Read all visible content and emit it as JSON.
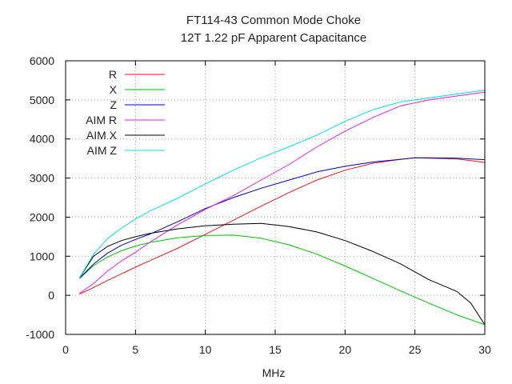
{
  "chart_data": {
    "type": "line",
    "title": "FT114-43 Common Mode Choke",
    "subtitle": "12T 1.22 pF Apparent Capacitance",
    "xlabel": "MHz",
    "ylabel": "",
    "xlim": [
      0,
      30
    ],
    "ylim": [
      -1000,
      6000
    ],
    "xticks": [
      "0",
      "5",
      "10",
      "15",
      "20",
      "25",
      "30"
    ],
    "yticks": [
      "-1000",
      "0",
      "1000",
      "2000",
      "3000",
      "4000",
      "5000",
      "6000"
    ],
    "grid": true,
    "legend_position": "top-left",
    "series": [
      {
        "name": "R",
        "color": "#e41a1c",
        "x": [
          1,
          2,
          3,
          4,
          5,
          6,
          8,
          10,
          12,
          14,
          16,
          18,
          20,
          22,
          24,
          25,
          26,
          28,
          30
        ],
        "y": [
          30,
          200,
          380,
          550,
          720,
          880,
          1200,
          1560,
          1920,
          2280,
          2630,
          2950,
          3200,
          3380,
          3480,
          3520,
          3510,
          3490,
          3400
        ]
      },
      {
        "name": "X",
        "color": "#00c000",
        "x": [
          1,
          2,
          3,
          4,
          5,
          6,
          8,
          10,
          12,
          14,
          16,
          18,
          20,
          22,
          24,
          26,
          28,
          30
        ],
        "y": [
          430,
          760,
          980,
          1140,
          1260,
          1350,
          1470,
          1530,
          1540,
          1460,
          1290,
          1050,
          750,
          430,
          110,
          -200,
          -500,
          -750
        ]
      },
      {
        "name": "Z",
        "color": "#0000c0",
        "x": [
          1,
          2,
          3,
          4,
          5,
          6,
          8,
          10,
          12,
          14,
          16,
          18,
          20,
          22,
          24,
          25,
          26,
          28,
          30
        ],
        "y": [
          440,
          800,
          1080,
          1280,
          1430,
          1560,
          1880,
          2220,
          2500,
          2740,
          2950,
          3160,
          3300,
          3410,
          3480,
          3520,
          3520,
          3510,
          3470
        ]
      },
      {
        "name": "AIM R",
        "color": "#e020e0",
        "x": [
          1,
          2,
          3,
          4,
          5,
          6,
          8,
          10,
          12,
          14,
          16,
          18,
          20,
          22,
          24,
          26,
          28,
          30
        ],
        "y": [
          50,
          300,
          620,
          880,
          1100,
          1350,
          1800,
          2200,
          2550,
          2950,
          3350,
          3800,
          4200,
          4550,
          4850,
          5000,
          5100,
          5200
        ]
      },
      {
        "name": "AIM X",
        "color": "#000000",
        "x": [
          1,
          2,
          3,
          4,
          5,
          6,
          8,
          10,
          12,
          14,
          15,
          16,
          18,
          20,
          22,
          24,
          26,
          28,
          29,
          30
        ],
        "y": [
          450,
          1000,
          1250,
          1400,
          1500,
          1580,
          1700,
          1780,
          1820,
          1840,
          1800,
          1760,
          1620,
          1400,
          1120,
          800,
          400,
          100,
          -200,
          -750
        ]
      },
      {
        "name": "AIM Z",
        "color": "#00e0e0",
        "x": [
          1,
          2,
          3,
          4,
          5,
          6,
          8,
          10,
          12,
          14,
          16,
          18,
          20,
          22,
          24,
          26,
          28,
          30
        ],
        "y": [
          450,
          1050,
          1450,
          1720,
          1950,
          2150,
          2480,
          2850,
          3200,
          3520,
          3800,
          4100,
          4450,
          4750,
          4950,
          5050,
          5150,
          5250
        ]
      }
    ]
  }
}
